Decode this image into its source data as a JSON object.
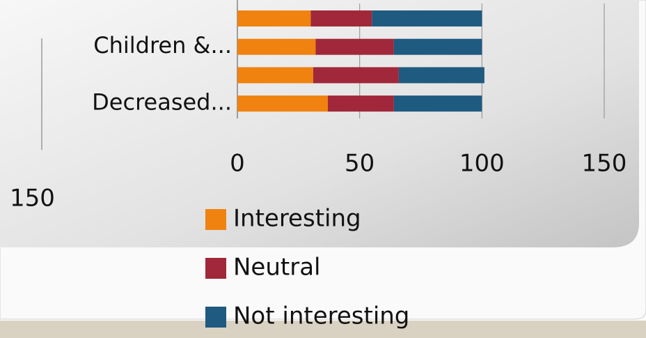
{
  "chart_data": {
    "type": "bar",
    "orientation": "horizontal",
    "stacked": true,
    "categories": [
      null,
      "Children &...",
      null,
      "Decreased..."
    ],
    "series": [
      {
        "name": "Interesting",
        "color": "#f0820f",
        "values": [
          30,
          32,
          31,
          37
        ]
      },
      {
        "name": "Neutral",
        "color": "#a0283a",
        "values": [
          25,
          32,
          35,
          27
        ]
      },
      {
        "name": "Not interesting",
        "color": "#1f5a80",
        "values": [
          45,
          36,
          35,
          36
        ]
      }
    ],
    "xlim": [
      0,
      150
    ],
    "xticks": [
      0,
      50,
      100,
      150
    ],
    "grid": true,
    "legend": "bottom",
    "secondary_xticks": [
      150
    ]
  }
}
